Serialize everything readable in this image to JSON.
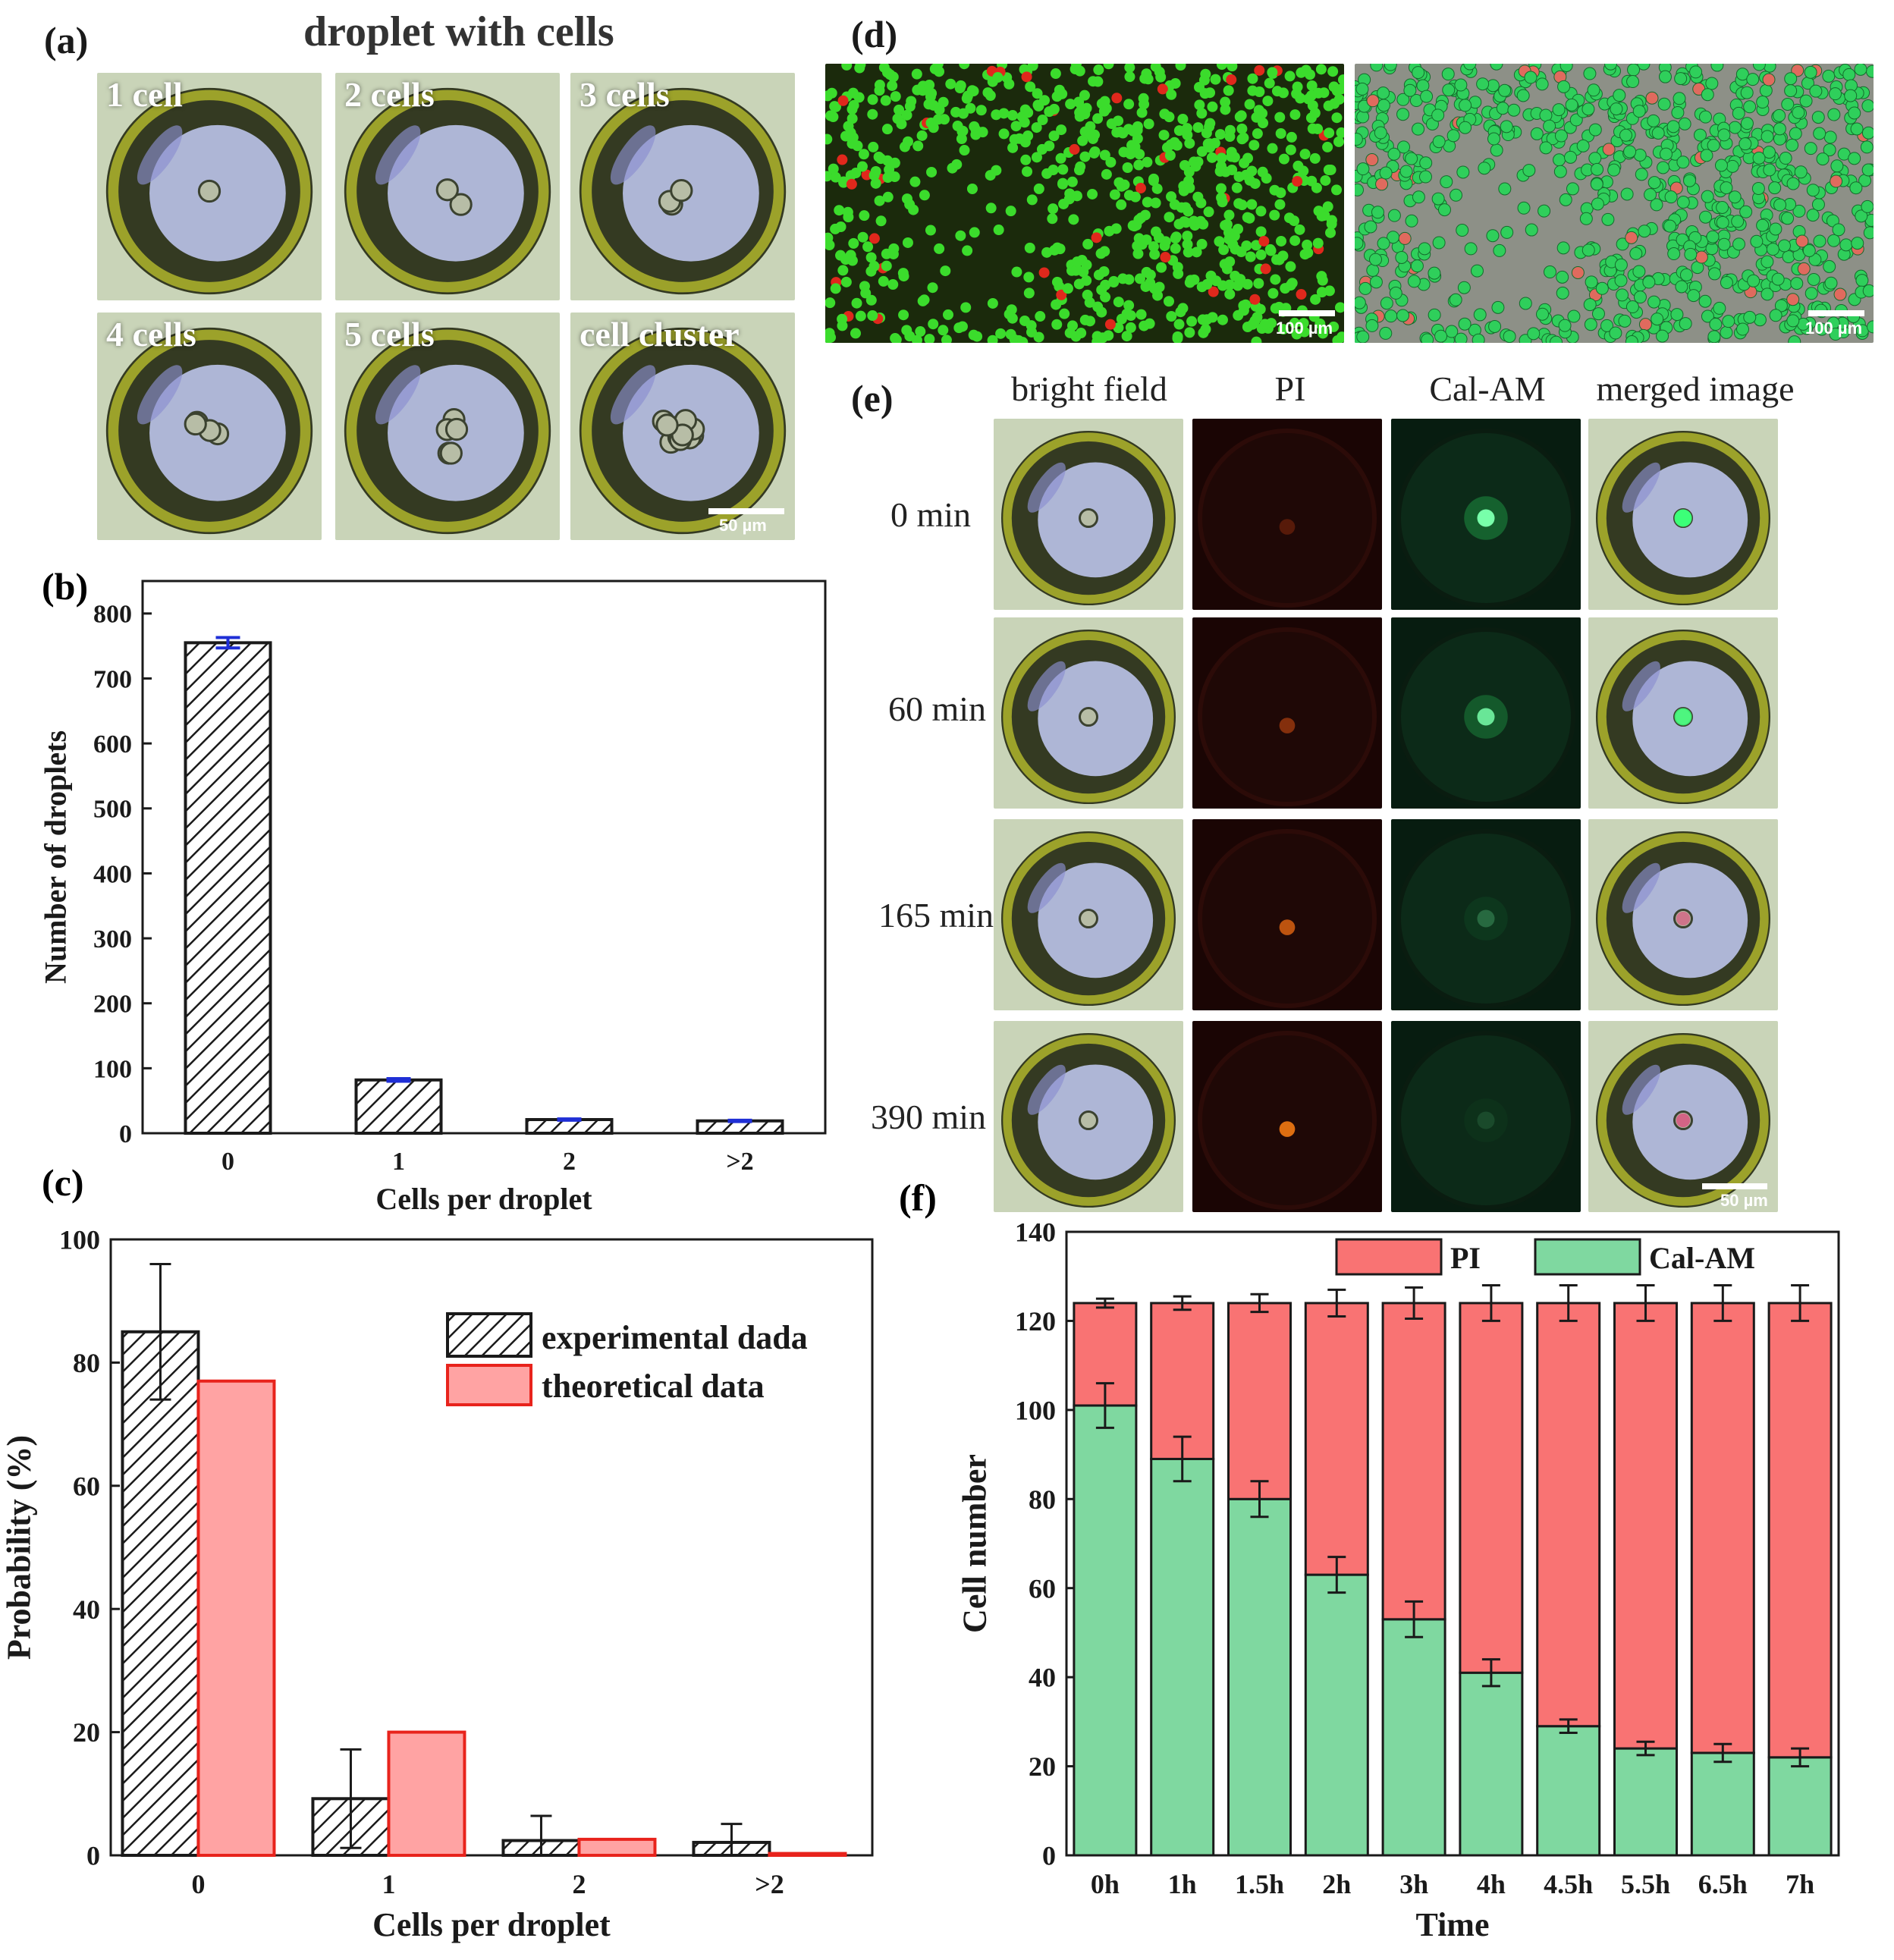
{
  "panel_a": {
    "label": "(a)",
    "title": "droplet with cells",
    "tiles": [
      "1 cell",
      "2 cells",
      "3 cells",
      "4 cells",
      "5 cells",
      "cell cluster"
    ],
    "cell_counts": [
      1,
      2,
      3,
      4,
      5,
      12
    ],
    "scale": "50 µm"
  },
  "panel_d": {
    "label": "(d)",
    "scale_left": "100 µm",
    "scale_right": "100 µm"
  },
  "panel_e": {
    "label": "(e)",
    "columns": [
      "bright field",
      "PI",
      "Cal-AM",
      "merged image"
    ],
    "rows": [
      "0 min",
      "60 min",
      "165 min",
      "390 min"
    ],
    "pi_intensity": [
      0.25,
      0.45,
      0.7,
      0.85
    ],
    "calam_intensity": [
      1.0,
      0.85,
      0.25,
      0.12
    ],
    "scale": "50 µm"
  },
  "colors": {
    "pi_red": "#f97373",
    "calam_green": "#7fd8a0",
    "theoretical_fill": "#ffa3a3",
    "theoretical_edge": "#e8231c",
    "error_blue": "#1f2fd6"
  },
  "chart_data": [
    {
      "panel": "(b)",
      "type": "bar",
      "categories": [
        "0",
        "1",
        "2",
        ">2"
      ],
      "values": [
        755,
        82,
        21,
        19
      ],
      "errors": [
        8,
        2,
        1,
        1
      ],
      "xlabel": "Cells per droplet",
      "ylabel": "Number of droplets",
      "ylim": [
        0,
        850
      ],
      "yticks": [
        0,
        100,
        200,
        300,
        400,
        500,
        600,
        700,
        800
      ],
      "pattern": "hatched"
    },
    {
      "panel": "(c)",
      "type": "bar",
      "categories": [
        "0",
        "1",
        "2",
        ">2"
      ],
      "series": [
        {
          "name": "experimental dada",
          "values": [
            85,
            9.2,
            2.4,
            2.1
          ],
          "errors": [
            11,
            8,
            4,
            3
          ]
        },
        {
          "name": "theoretical data",
          "values": [
            77,
            20,
            2.6,
            0.3
          ]
        }
      ],
      "xlabel": "Cells per droplet",
      "ylabel": "Probability (%)",
      "ylim": [
        0,
        100
      ],
      "yticks": [
        0,
        20,
        40,
        60,
        80,
        100
      ],
      "legend": "top-right"
    },
    {
      "panel": "(f)",
      "type": "bar",
      "stacked": true,
      "categories": [
        "0h",
        "1h",
        "1.5h",
        "2h",
        "3h",
        "4h",
        "4.5h",
        "5.5h",
        "6.5h",
        "7h"
      ],
      "series": [
        {
          "name": "Cal-AM",
          "values": [
            101,
            89,
            80,
            63,
            53,
            41,
            29,
            24,
            23,
            22
          ],
          "errors": [
            5,
            5,
            4,
            4,
            4,
            3,
            1.5,
            1.5,
            2,
            2
          ]
        },
        {
          "name": "PI",
          "values": [
            23,
            35,
            44,
            61,
            71,
            83,
            95,
            100,
            101,
            102
          ]
        }
      ],
      "totals": [
        124,
        124,
        124,
        124,
        124,
        124,
        124,
        124,
        124,
        124
      ],
      "total_errors": [
        1,
        1.5,
        2,
        3,
        3.5,
        4,
        4,
        4,
        4,
        4
      ],
      "xlabel": "Time",
      "ylabel": "Cell number",
      "ylim": [
        0,
        140
      ],
      "yticks": [
        0,
        20,
        40,
        60,
        80,
        100,
        120,
        140
      ],
      "legend": "top-center"
    }
  ]
}
